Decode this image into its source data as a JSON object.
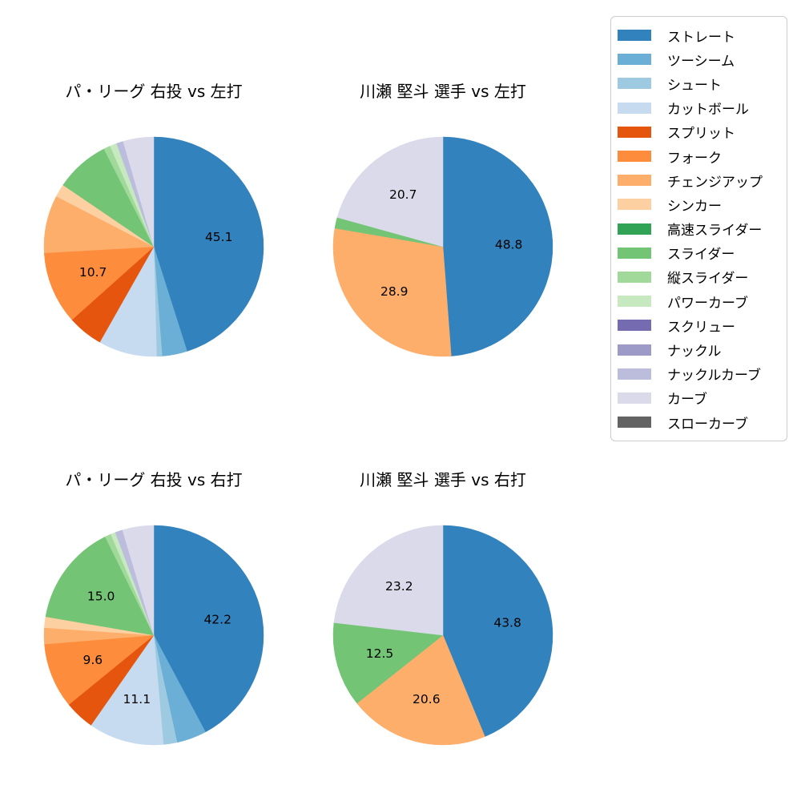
{
  "page": {
    "background": "#ffffff",
    "text_color": "#000000"
  },
  "legend": {
    "items": [
      {
        "label": "ストレート",
        "color": "#3182bd"
      },
      {
        "label": "ツーシーム",
        "color": "#6baed6"
      },
      {
        "label": "シュート",
        "color": "#9ecae1"
      },
      {
        "label": "カットボール",
        "color": "#c6dbef"
      },
      {
        "label": "スプリット",
        "color": "#e6550d"
      },
      {
        "label": "フォーク",
        "color": "#fd8d3c"
      },
      {
        "label": "チェンジアップ",
        "color": "#fdae6b"
      },
      {
        "label": "シンカー",
        "color": "#fdd0a2"
      },
      {
        "label": "高速スライダー",
        "color": "#31a354"
      },
      {
        "label": "スライダー",
        "color": "#74c476"
      },
      {
        "label": "縦スライダー",
        "color": "#a1d99b"
      },
      {
        "label": "パワーカーブ",
        "color": "#c7e9c0"
      },
      {
        "label": "スクリュー",
        "color": "#756bb1"
      },
      {
        "label": "ナックル",
        "color": "#9e9ac8"
      },
      {
        "label": "ナックルカーブ",
        "color": "#bcbddc"
      },
      {
        "label": "カーブ",
        "color": "#dadaeb"
      },
      {
        "label": "スローカーブ",
        "color": "#636363"
      }
    ]
  },
  "chart_data": [
    {
      "type": "pie",
      "title": "パ・リーグ 右投 vs 左打",
      "start_angle": "top",
      "direction": "clockwise",
      "label_min_pct": 9.5,
      "pct_distance": 0.6,
      "slices": [
        {
          "label": "ストレート",
          "value": 45.1
        },
        {
          "label": "ツーシーム",
          "value": 3.7
        },
        {
          "label": "シュート",
          "value": 0.8
        },
        {
          "label": "カットボール",
          "value": 8.6
        },
        {
          "label": "スプリット",
          "value": 5.2
        },
        {
          "label": "フォーク",
          "value": 10.7
        },
        {
          "label": "チェンジアップ",
          "value": 8.5
        },
        {
          "label": "シンカー",
          "value": 1.9
        },
        {
          "label": "スライダー",
          "value": 8.0
        },
        {
          "label": "縦スライダー",
          "value": 1.0
        },
        {
          "label": "パワーカーブ",
          "value": 1.0
        },
        {
          "label": "ナックルカーブ",
          "value": 1.0
        },
        {
          "label": "カーブ",
          "value": 4.5
        }
      ]
    },
    {
      "type": "pie",
      "title": "川瀬 堅斗 選手 vs 左打",
      "start_angle": "top",
      "direction": "clockwise",
      "label_min_pct": 9.5,
      "pct_distance": 0.6,
      "slices": [
        {
          "label": "ストレート",
          "value": 48.8
        },
        {
          "label": "チェンジアップ",
          "value": 28.9
        },
        {
          "label": "スライダー",
          "value": 1.6
        },
        {
          "label": "カーブ",
          "value": 20.7
        }
      ]
    },
    {
      "type": "pie",
      "title": "パ・リーグ 右投 vs 右打",
      "start_angle": "top",
      "direction": "clockwise",
      "label_min_pct": 9.5,
      "pct_distance": 0.6,
      "slices": [
        {
          "label": "ストレート",
          "value": 42.2
        },
        {
          "label": "ツーシーム",
          "value": 4.4
        },
        {
          "label": "シュート",
          "value": 2.0
        },
        {
          "label": "カットボール",
          "value": 11.1
        },
        {
          "label": "スプリット",
          "value": 4.4
        },
        {
          "label": "フォーク",
          "value": 9.6
        },
        {
          "label": "チェンジアップ",
          "value": 2.4
        },
        {
          "label": "シンカー",
          "value": 1.6
        },
        {
          "label": "スライダー",
          "value": 15.0
        },
        {
          "label": "縦スライダー",
          "value": 0.9
        },
        {
          "label": "パワーカーブ",
          "value": 0.7
        },
        {
          "label": "ナックルカーブ",
          "value": 1.1
        },
        {
          "label": "カーブ",
          "value": 4.6
        }
      ]
    },
    {
      "type": "pie",
      "title": "川瀬 堅斗 選手 vs 右打",
      "start_angle": "top",
      "direction": "clockwise",
      "label_min_pct": 9.5,
      "pct_distance": 0.6,
      "slices": [
        {
          "label": "ストレート",
          "value": 43.8
        },
        {
          "label": "チェンジアップ",
          "value": 20.6
        },
        {
          "label": "スライダー",
          "value": 12.5
        },
        {
          "label": "カーブ",
          "value": 23.2
        }
      ]
    }
  ]
}
